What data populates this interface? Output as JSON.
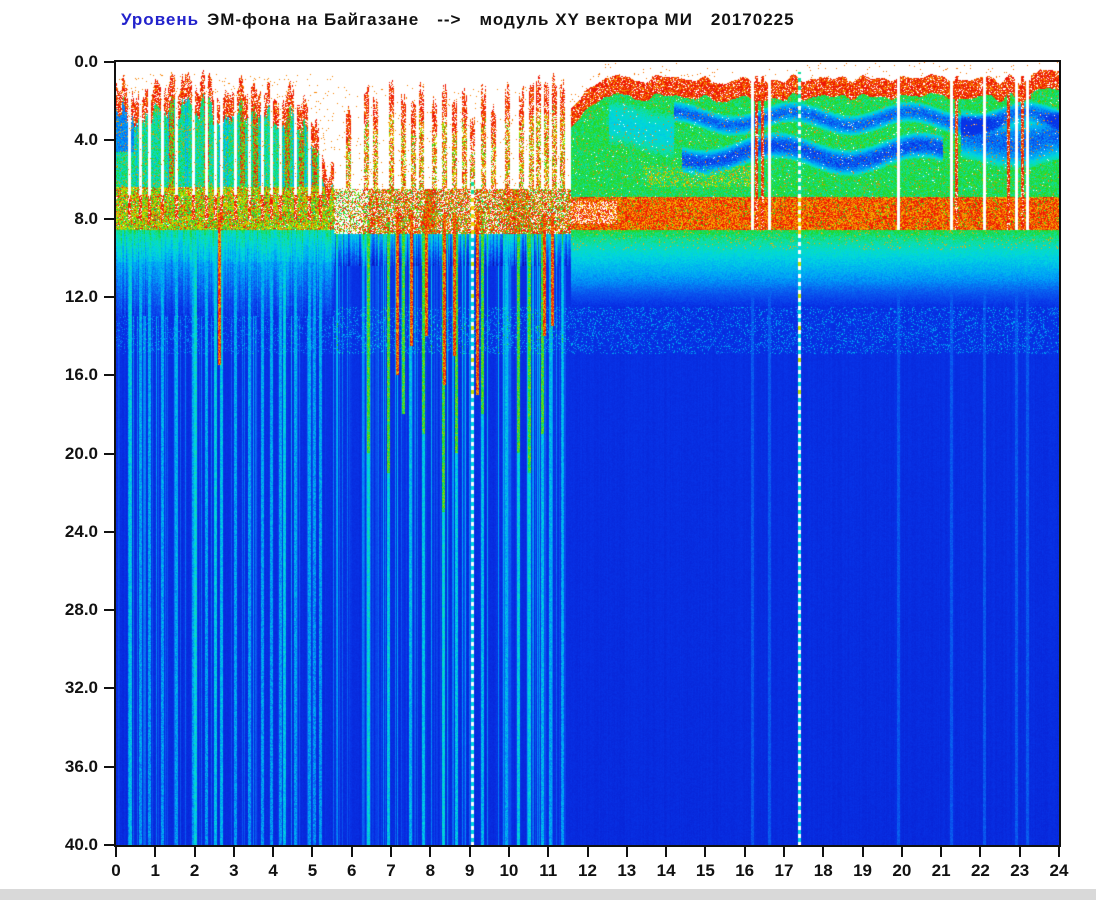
{
  "title": {
    "part1": "Уровень",
    "part2": "ЭМ-фона на Байгазане",
    "arrow": "-->",
    "part3": "модуль XY вектора МИ",
    "date": "20170225",
    "part1_color": "#2222cc"
  },
  "chart_data": {
    "type": "heatmap",
    "subtype": "spectrogram",
    "title": "Уровень ЭМ-фона на Байгазане --> модуль XY вектора МИ 20170225",
    "date_label": "20170225",
    "x_axis": {
      "min": 0,
      "max": 24,
      "tick_step": 1,
      "tick_labels": [
        "0",
        "1",
        "2",
        "3",
        "4",
        "5",
        "6",
        "7",
        "8",
        "9",
        "10",
        "11",
        "12",
        "13",
        "14",
        "15",
        "16",
        "17",
        "18",
        "19",
        "20",
        "21",
        "22",
        "23",
        "24"
      ]
    },
    "y_axis": {
      "min": 0,
      "max": 40,
      "tick_step": 4,
      "direction": "down",
      "tick_labels": [
        "0.0",
        "4.0",
        "8.0",
        "12.0",
        "16.0",
        "20.0",
        "24.0",
        "28.0",
        "32.0",
        "36.0",
        "40.0"
      ]
    },
    "grid": false,
    "legend": false,
    "background_color": "#ffffff",
    "colormap": {
      "type": "jet-like",
      "white_below": 0.025,
      "stops": [
        [
          0.03,
          "#0a10a0"
        ],
        [
          0.1,
          "#0722d4"
        ],
        [
          0.16,
          "#0834e8"
        ],
        [
          0.24,
          "#0a5cf0"
        ],
        [
          0.32,
          "#00a0f8"
        ],
        [
          0.42,
          "#00d8e0"
        ],
        [
          0.5,
          "#10e0a0"
        ],
        [
          0.58,
          "#22d822"
        ],
        [
          0.68,
          "#9ae000"
        ],
        [
          0.78,
          "#f0e400"
        ],
        [
          0.88,
          "#f88400"
        ],
        [
          1.0,
          "#ee1606"
        ]
      ]
    },
    "seed": 20170225,
    "annotations": [
      "0h-5.6h: dense noisy columns (red tops ~0.5-2, green/cyan bodies) over white, separated by white gaps",
      "horizontal red/yellow intensity band at depth ~6.5-8.6 across the whole day",
      "5.6h-11.5h: mostly white above 6.5 with sparse red spike columns; many vertical cyan/green/red streaks reaching depth 40",
      "white/cyan dashed vertical line at 9.07h and at 17.38h",
      "11.6h-24h: continuous block - red speckled edge ~0.6-1.6, green zone to ~6.9 with embedded blue wavy patches (14h-24h), red band 6.9-8.6, fading to deep blue below ~12",
      "cyan speckle band at depth ~12.5-14.8",
      "white dropout columns near 16.2, 16.6, 19.9, 21.25, 22.1, 22.9, 23.2 h"
    ],
    "model": {
      "left": {
        "t_end": 5.55,
        "fade_start": 4.6,
        "band_top": 6.4,
        "band_bot": 8.6
      },
      "middle": {
        "band_top": 6.5,
        "band_bot": 8.8
      },
      "right": {
        "t_start": 11.58,
        "top_base": 0.62,
        "ramp_end": 12.45,
        "ramp_slope": 1.5,
        "red_h": 0.95,
        "band_top": 6.9,
        "band_bot": 8.6,
        "yellow": {
          "t0": 13.4,
          "t1": 16.3,
          "d0": 5.3,
          "d1": 6.4
        },
        "patches": [
          {
            "t0": 14.2,
            "t1": 24.0,
            "d": 2.9,
            "hw": 0.55,
            "s": 0.3,
            "amp": 0.35,
            "fr": 2.1,
            "ph": 0.0
          },
          {
            "t0": 14.4,
            "t1": 21.05,
            "d": 4.7,
            "hw": 0.7,
            "s": 0.34,
            "amp": 0.45,
            "fr": 1.7,
            "ph": 1.3
          },
          {
            "t0": 21.5,
            "t1": 24.0,
            "d": 3.9,
            "hw": 1.3,
            "s": 0.3,
            "amp": 0.3,
            "fr": 1.9,
            "ph": 2.1
          },
          {
            "t0": 12.55,
            "t1": 14.2,
            "d": 3.4,
            "hw": 1.2,
            "s": 0.13,
            "amp": 0.3,
            "fr": 2.3,
            "ph": 0.7
          }
        ]
      }
    },
    "features": {
      "left_gaps": [
        0.33,
        0.62,
        0.85,
        1.18,
        1.52,
        1.95,
        2.28,
        2.52,
        2.66,
        3.02,
        3.38,
        3.72,
        3.95,
        4.18,
        4.55,
        4.9,
        5.2
      ],
      "red_trees": [
        1.4,
        2.3,
        3.2,
        3.55,
        4.35,
        4.7,
        5.05
      ],
      "spikes": [
        [
          5.9,
          2.6
        ],
        [
          6.35,
          1.3
        ],
        [
          6.6,
          2.1
        ],
        [
          7.0,
          1.0
        ],
        [
          7.3,
          1.8
        ],
        [
          7.55,
          2.3
        ],
        [
          7.75,
          1.2
        ],
        [
          8.1,
          2.0
        ],
        [
          8.35,
          1.4
        ],
        [
          8.6,
          2.2
        ],
        [
          8.85,
          1.6
        ],
        [
          9.05,
          2.8
        ],
        [
          9.35,
          1.5
        ],
        [
          9.6,
          2.4
        ],
        [
          9.95,
          1.3
        ],
        [
          10.3,
          1.6
        ],
        [
          10.55,
          1.0
        ],
        [
          10.75,
          0.85
        ],
        [
          10.95,
          1.1
        ],
        [
          11.15,
          0.95
        ],
        [
          11.35,
          1.25
        ]
      ],
      "cyan_streaks": [
        [
          0.35,
          0.42
        ],
        [
          0.85,
          0.36
        ],
        [
          2.02,
          0.46
        ],
        [
          2.52,
          0.42
        ],
        [
          2.66,
          0.4
        ],
        [
          4.27,
          0.42
        ],
        [
          5.05,
          0.34
        ],
        [
          6.42,
          0.46
        ],
        [
          6.92,
          0.44
        ],
        [
          7.48,
          0.4
        ],
        [
          7.82,
          0.42
        ],
        [
          8.32,
          0.46
        ],
        [
          8.65,
          0.42
        ],
        [
          9.32,
          0.4
        ],
        [
          9.92,
          0.38
        ],
        [
          10.22,
          0.44
        ],
        [
          10.52,
          0.44
        ],
        [
          10.85,
          0.4
        ],
        [
          11.05,
          0.38
        ],
        [
          11.35,
          0.36
        ]
      ],
      "red_streaks": [
        [
          2.62,
          15.5
        ],
        [
          7.14,
          16.0
        ],
        [
          7.5,
          14.5
        ],
        [
          7.9,
          14.0
        ],
        [
          8.35,
          16.5
        ],
        [
          8.6,
          15.0
        ],
        [
          9.2,
          17.0
        ],
        [
          10.9,
          14.0
        ],
        [
          11.1,
          13.5
        ]
      ],
      "green_streaks": [
        [
          6.42,
          20
        ],
        [
          6.92,
          21
        ],
        [
          7.3,
          18
        ],
        [
          7.82,
          19
        ],
        [
          8.32,
          23
        ],
        [
          8.65,
          20
        ],
        [
          9.32,
          18
        ],
        [
          10.22,
          20
        ],
        [
          10.52,
          21
        ],
        [
          10.85,
          19
        ]
      ],
      "dashed_lines": [
        {
          "t": 9.07,
          "d0": 6.0
        },
        {
          "t": 17.38,
          "d0": 0.5
        }
      ],
      "dropouts": [
        16.18,
        16.62,
        19.9,
        21.25,
        22.08,
        22.9,
        23.18
      ],
      "red_columns": [
        16.28,
        16.45,
        21.38,
        22.7,
        23.05
      ]
    }
  }
}
